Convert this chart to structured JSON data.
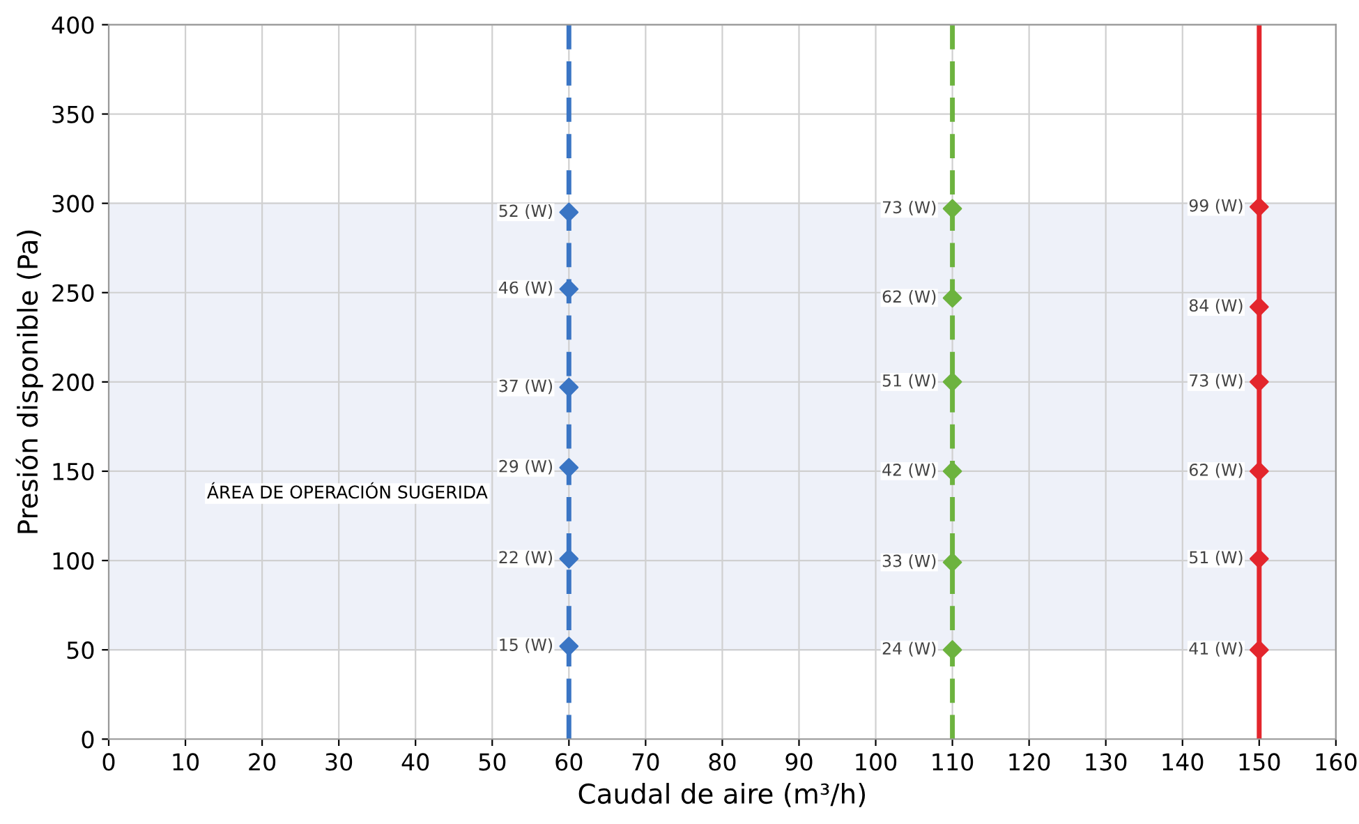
{
  "chart_data": {
    "type": "scatter",
    "xlabel": "Caudal de aire (m³/h)",
    "ylabel": "Presión disponible (Pa)",
    "xlim": [
      0,
      160
    ],
    "ylim": [
      0,
      400
    ],
    "xticks": [
      0,
      10,
      20,
      30,
      40,
      50,
      60,
      70,
      80,
      90,
      100,
      110,
      120,
      130,
      140,
      150,
      160
    ],
    "yticks": [
      0,
      50,
      100,
      150,
      200,
      250,
      300,
      350,
      400
    ],
    "grid": true,
    "marker": "diamond",
    "bands": [
      {
        "axis": "y",
        "from": 50,
        "to": 300,
        "label": "ÁREA DE OPERACIÓN SUGERIDA",
        "color": "#eef1f9"
      }
    ],
    "ref_lines": [
      {
        "axis": "x",
        "value": 60,
        "color": "#3a75c4",
        "line_style": "dashed"
      },
      {
        "axis": "x",
        "value": 110,
        "color": "#6db33f",
        "line_style": "dashed"
      },
      {
        "axis": "x",
        "value": 150,
        "color": "#e3262d",
        "line_style": "solid"
      }
    ],
    "series": [
      {
        "color": "#3a75c4",
        "x": [
          60,
          60,
          60,
          60,
          60,
          60
        ],
        "values": [
          295,
          252,
          197,
          152,
          101,
          52
        ]
      },
      {
        "color": "#6db33f",
        "x": [
          110,
          110,
          110,
          110,
          110,
          110
        ],
        "values": [
          297,
          247,
          200,
          150,
          99,
          50
        ]
      },
      {
        "color": "#e3262d",
        "x": [
          150,
          150,
          150,
          150,
          150,
          150
        ],
        "values": [
          298,
          242,
          200,
          150,
          101,
          50
        ]
      }
    ],
    "annotations": [
      {
        "text": "52 (W)",
        "x": 60,
        "y": 295
      },
      {
        "text": "46 (W)",
        "x": 60,
        "y": 252
      },
      {
        "text": "37 (W)",
        "x": 60,
        "y": 197
      },
      {
        "text": "29 (W)",
        "x": 60,
        "y": 152
      },
      {
        "text": "22 (W)",
        "x": 60,
        "y": 101
      },
      {
        "text": "15 (W)",
        "x": 60,
        "y": 52
      },
      {
        "text": "73 (W)",
        "x": 110,
        "y": 297
      },
      {
        "text": "62 (W)",
        "x": 110,
        "y": 247
      },
      {
        "text": "51 (W)",
        "x": 110,
        "y": 200
      },
      {
        "text": "42 (W)",
        "x": 110,
        "y": 150
      },
      {
        "text": "33 (W)",
        "x": 110,
        "y": 99
      },
      {
        "text": "24 (W)",
        "x": 110,
        "y": 50
      },
      {
        "text": "99 (W)",
        "x": 150,
        "y": 298
      },
      {
        "text": "84 (W)",
        "x": 150,
        "y": 242
      },
      {
        "text": "73 (W)",
        "x": 150,
        "y": 200
      },
      {
        "text": "62 (W)",
        "x": 150,
        "y": 150
      },
      {
        "text": "51 (W)",
        "x": 150,
        "y": 101
      },
      {
        "text": "41 (W)",
        "x": 150,
        "y": 50
      }
    ]
  }
}
